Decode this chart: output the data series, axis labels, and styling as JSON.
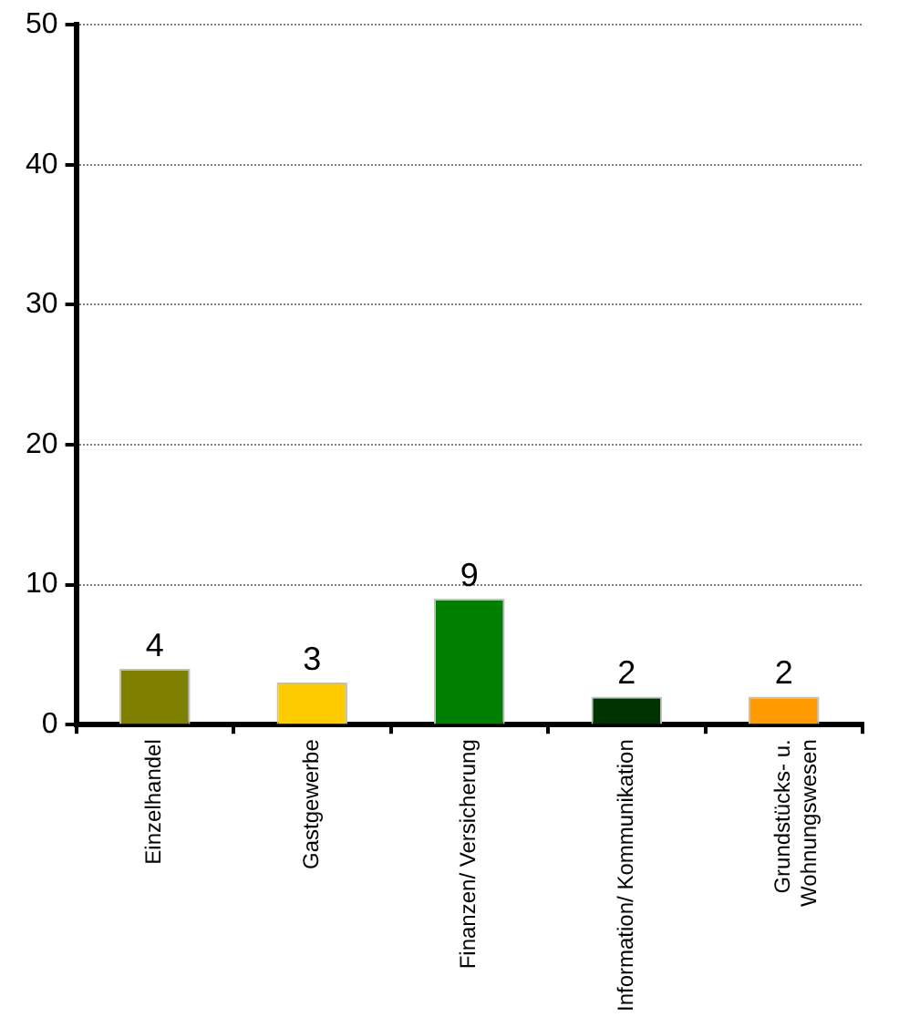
{
  "chart_data": {
    "type": "bar",
    "categories": [
      "Einzelhandel",
      "Gastgewerbe",
      "Finanzen/ Versicherung",
      "Information/ Kommunikation",
      "Grundstücks- u. Wohnungswesen"
    ],
    "values": [
      4,
      3,
      9,
      2,
      2
    ],
    "colors": [
      "#808000",
      "#ffcc00",
      "#008000",
      "#003300",
      "#ff9900"
    ],
    "ylim": [
      0,
      50
    ],
    "yticks": [
      0,
      10,
      20,
      30,
      40,
      50
    ],
    "grid": "y",
    "data_labels": true,
    "legend": false
  }
}
